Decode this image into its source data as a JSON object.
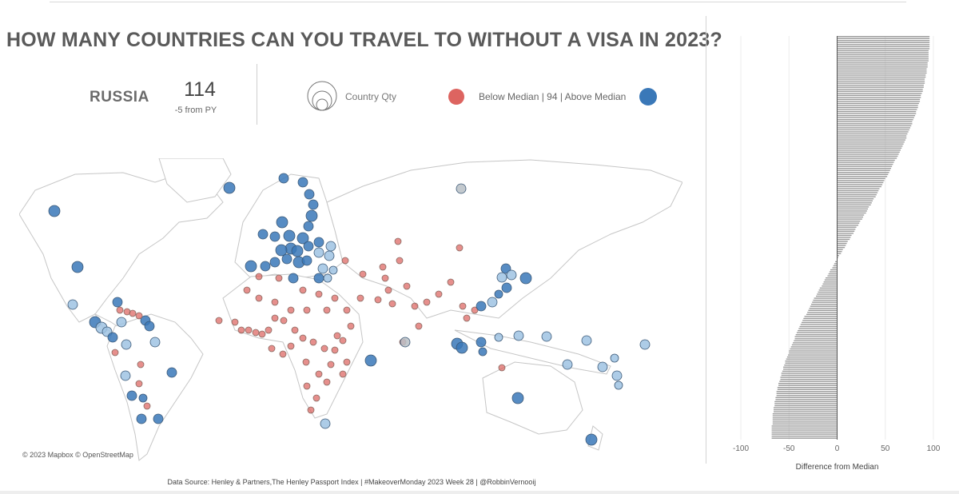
{
  "title": "HOW MANY COUNTRIES CAN YOU TRAVEL TO WITHOUT A VISA IN 2023?",
  "kpi": {
    "country": "RUSSIA",
    "count": "114",
    "delta": "-5 from PY"
  },
  "legend": {
    "size_label": "Country Qty",
    "color_label": "Below Median | 94 | Above Median",
    "below_color": "#d9534f",
    "above_color": "#3a78b8"
  },
  "map": {
    "credit": "© 2023 Mapbox  © OpenStreetMap"
  },
  "footer": "Data Source: Henley & Partners,The Henley Passport Index | #MakeoverMonday 2023 Week 28 | @RobbinVernooij",
  "chart_data": {
    "type": "bar",
    "orientation": "horizontal",
    "sorted": "descending",
    "bar_count": 199,
    "value_range": [
      -68,
      96
    ],
    "xlabel": "Difference from Median",
    "xlim": [
      -110,
      110
    ],
    "x_ticks": [
      -100,
      -50,
      0,
      50,
      100
    ],
    "x_tick_labels": [
      "-100",
      "-50",
      "0",
      "50",
      "100"
    ],
    "bar_color": "#9a9a9a",
    "grid": "vertical"
  }
}
